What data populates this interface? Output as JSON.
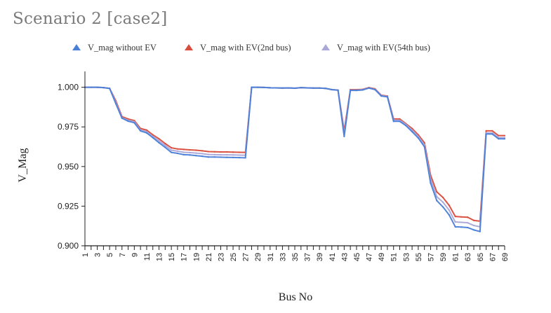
{
  "title": "Scenario 2 [case2]",
  "chart_data": {
    "type": "line",
    "xlabel": "Bus No",
    "ylabel": "V_Mag",
    "ylim": [
      0.9,
      1.01
    ],
    "y_ticks": [
      "1.000",
      "0.975",
      "0.950",
      "0.925",
      "0.900"
    ],
    "legend_placement": "top",
    "x_tick_labels": [
      1,
      3,
      5,
      7,
      9,
      11,
      13,
      15,
      17,
      19,
      21,
      23,
      25,
      27,
      29,
      31,
      33,
      35,
      37,
      39,
      41,
      43,
      45,
      47,
      49,
      51,
      53,
      55,
      57,
      59,
      61,
      63,
      65,
      67,
      69
    ],
    "x": [
      1,
      2,
      3,
      4,
      5,
      6,
      7,
      8,
      9,
      10,
      11,
      12,
      13,
      14,
      15,
      16,
      17,
      18,
      19,
      20,
      21,
      22,
      23,
      24,
      25,
      26,
      27,
      28,
      29,
      30,
      31,
      32,
      33,
      34,
      35,
      36,
      37,
      38,
      39,
      40,
      41,
      42,
      43,
      44,
      45,
      46,
      47,
      48,
      49,
      50,
      51,
      52,
      53,
      54,
      55,
      56,
      57,
      58,
      59,
      60,
      61,
      62,
      63,
      64,
      65,
      66,
      67,
      68,
      69
    ],
    "series": [
      {
        "name": "V_mag without EV",
        "color": "#4a7fd8",
        "values": [
          1.0,
          1.0,
          1.0,
          0.9998,
          0.9993,
          0.9897,
          0.9805,
          0.9786,
          0.9776,
          0.9725,
          0.9712,
          0.9682,
          0.965,
          0.9621,
          0.9589,
          0.9583,
          0.9575,
          0.9573,
          0.9569,
          0.9565,
          0.956,
          0.956,
          0.9559,
          0.9558,
          0.9557,
          0.9556,
          0.9555,
          1.0,
          1.0,
          0.9999,
          0.9997,
          0.9996,
          0.9995,
          0.9996,
          0.9994,
          0.9998,
          0.9996,
          0.9995,
          0.9995,
          0.9993,
          0.9985,
          0.9982,
          0.969,
          0.998,
          0.998,
          0.9983,
          0.9995,
          0.9985,
          0.9945,
          0.994,
          0.9785,
          0.9785,
          0.9758,
          0.972,
          0.968,
          0.9625,
          0.9395,
          0.9285,
          0.9245,
          0.9195,
          0.912,
          0.9118,
          0.9115,
          0.91,
          0.909,
          0.9705,
          0.9705,
          0.9675,
          0.9675
        ]
      },
      {
        "name": "V_mag with EV(2nd bus)",
        "color": "#d94b3c",
        "values": [
          1.0,
          1.0,
          1.0,
          0.9998,
          0.9993,
          0.9915,
          0.9815,
          0.98,
          0.979,
          0.974,
          0.973,
          0.97,
          0.9675,
          0.9645,
          0.9618,
          0.9611,
          0.9608,
          0.9605,
          0.9603,
          0.9599,
          0.9594,
          0.9593,
          0.9592,
          0.9592,
          0.9591,
          0.959,
          0.9589,
          1.0,
          1.0,
          0.9999,
          0.9997,
          0.9996,
          0.9995,
          0.9996,
          0.9994,
          0.9998,
          0.9996,
          0.9995,
          0.9995,
          0.9993,
          0.9985,
          0.9982,
          0.9725,
          0.9985,
          0.9985,
          0.9987,
          0.9998,
          0.999,
          0.995,
          0.9945,
          0.98,
          0.98,
          0.977,
          0.974,
          0.97,
          0.965,
          0.9445,
          0.934,
          0.9305,
          0.9255,
          0.9185,
          0.9182,
          0.918,
          0.916,
          0.9155,
          0.9725,
          0.9725,
          0.9695,
          0.9695
        ]
      },
      {
        "name": "V_mag with EV(54th bus)",
        "color": "#aba7d8",
        "values": [
          1.0,
          1.0,
          1.0,
          0.9998,
          0.9993,
          0.9905,
          0.9808,
          0.9792,
          0.9783,
          0.973,
          0.972,
          0.969,
          0.9662,
          0.9633,
          0.9603,
          0.9597,
          0.959,
          0.9588,
          0.9585,
          0.9581,
          0.9576,
          0.9575,
          0.9574,
          0.9574,
          0.9573,
          0.9572,
          0.9571,
          1.0,
          1.0,
          0.9999,
          0.9997,
          0.9996,
          0.9995,
          0.9996,
          0.9994,
          0.9998,
          0.9996,
          0.9995,
          0.9995,
          0.9993,
          0.9985,
          0.9982,
          0.9705,
          0.9982,
          0.9982,
          0.9985,
          0.9996,
          0.9987,
          0.9947,
          0.9942,
          0.9792,
          0.9792,
          0.9765,
          0.973,
          0.969,
          0.9637,
          0.942,
          0.931,
          0.9275,
          0.9225,
          0.915,
          0.9148,
          0.9145,
          0.9128,
          0.912,
          0.9712,
          0.9712,
          0.9682,
          0.9682
        ]
      }
    ]
  }
}
